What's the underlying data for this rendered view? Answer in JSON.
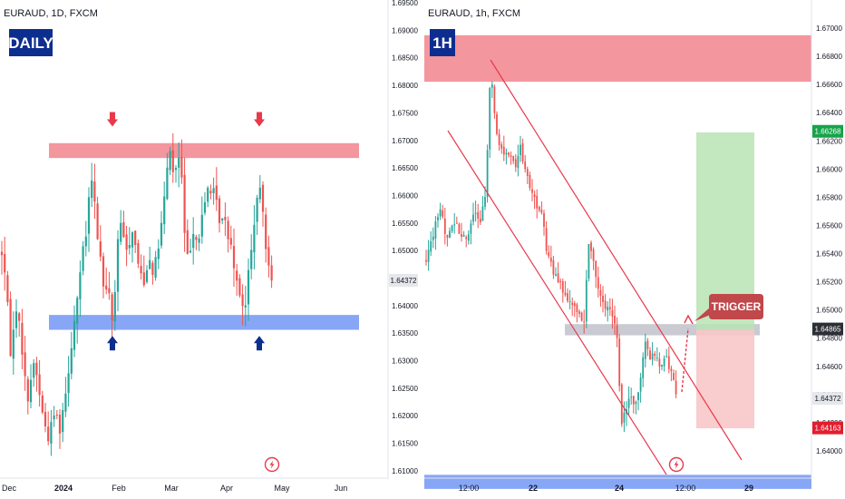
{
  "colors": {
    "bull": "#26a69a",
    "bear": "#ef5350",
    "resistance_zone": "#f28b93",
    "support_zone": "#7b9cf5",
    "grey_zone": "#b8b8c4",
    "badge": "#0e2e8f",
    "arrow_red": "#e8394b",
    "arrow_blue": "#0c2e8c",
    "channel": "#e8394b",
    "target_zone": "#b9e3b4",
    "stop_zone": "#f8c6c8",
    "trigger_bg": "#c0474a",
    "price_current": "#e6e7ea",
    "price_green": "#16a34a",
    "price_red": "#e21d2d",
    "price_dark": "#2d2f36"
  },
  "icons": [
    "lightning-icon"
  ],
  "chart_data": [
    {
      "type": "candlestick",
      "symbol": "EURAUD, 1D, FXCM",
      "badge": "DAILY",
      "x_labels": [
        "Dec",
        "2024",
        "Feb",
        "Mar",
        "Apr",
        "May",
        "Jun"
      ],
      "y_ticks": [
        "1.69500",
        "1.69000",
        "1.68500",
        "1.68000",
        "1.67500",
        "1.67000",
        "1.66500",
        "1.66000",
        "1.65500",
        "1.65000",
        "1.64500",
        "1.64000",
        "1.63500",
        "1.63000",
        "1.62500",
        "1.62000",
        "1.61500",
        "1.61000"
      ],
      "ylim": [
        1.6085,
        1.6955
      ],
      "current_price": "1.64372",
      "zones": [
        {
          "name": "resistance",
          "from": 1.6668,
          "to": 1.6695
        },
        {
          "name": "support",
          "from": 1.6356,
          "to": 1.6383
        }
      ],
      "arrows": [
        {
          "direction": "down",
          "date": "Jan 29",
          "price": 1.6735
        },
        {
          "direction": "down",
          "date": "Apr 22",
          "price": 1.6735
        },
        {
          "direction": "up",
          "date": "Jan 29",
          "price": 1.6335
        },
        {
          "direction": "up",
          "date": "Apr 22",
          "price": 1.6335
        }
      ],
      "path": [
        [
          0,
          1.652
        ],
        [
          6,
          1.645
        ],
        [
          12,
          1.631
        ],
        [
          18,
          1.64
        ],
        [
          24,
          1.633
        ],
        [
          30,
          1.622
        ],
        [
          34,
          1.627
        ],
        [
          38,
          1.63
        ],
        [
          42,
          1.626
        ],
        [
          48,
          1.619
        ],
        [
          54,
          1.616
        ],
        [
          60,
          1.621
        ],
        [
          66,
          1.618
        ],
        [
          72,
          1.624
        ],
        [
          78,
          1.632
        ],
        [
          84,
          1.64
        ],
        [
          90,
          1.648
        ],
        [
          96,
          1.654
        ],
        [
          100,
          1.664
        ],
        [
          104,
          1.659
        ],
        [
          108,
          1.652
        ],
        [
          112,
          1.647
        ],
        [
          116,
          1.641
        ],
        [
          120,
          1.644
        ],
        [
          124,
          1.636
        ],
        [
          128,
          1.646
        ],
        [
          132,
          1.656
        ],
        [
          136,
          1.652
        ],
        [
          140,
          1.65
        ],
        [
          146,
          1.654
        ],
        [
          152,
          1.648
        ],
        [
          158,
          1.644
        ],
        [
          164,
          1.649
        ],
        [
          170,
          1.646
        ],
        [
          176,
          1.652
        ],
        [
          180,
          1.657
        ],
        [
          184,
          1.664
        ],
        [
          188,
          1.669
        ],
        [
          192,
          1.662
        ],
        [
          196,
          1.668
        ],
        [
          200,
          1.664
        ],
        [
          204,
          1.652
        ],
        [
          208,
          1.647
        ],
        [
          212,
          1.655
        ],
        [
          218,
          1.651
        ],
        [
          224,
          1.657
        ],
        [
          230,
          1.662
        ],
        [
          236,
          1.66
        ],
        [
          242,
          1.656
        ],
        [
          248,
          1.655
        ],
        [
          254,
          1.652
        ],
        [
          258,
          1.648
        ],
        [
          262,
          1.644
        ],
        [
          266,
          1.642
        ],
        [
          270,
          1.638
        ],
        [
          274,
          1.646
        ],
        [
          278,
          1.651
        ],
        [
          282,
          1.658
        ],
        [
          286,
          1.661
        ],
        [
          290,
          1.657
        ],
        [
          294,
          1.65
        ],
        [
          298,
          1.647
        ],
        [
          302,
          1.643
        ]
      ]
    },
    {
      "type": "candlestick",
      "symbol": "EURAUD, 1h, FXCM",
      "badge": "1H",
      "x_labels": [
        "12:00",
        "22",
        "24",
        "12:00",
        "29"
      ],
      "y_ticks": [
        "1.67000",
        "1.66800",
        "1.66600",
        "1.66400",
        "1.66200",
        "1.66000",
        "1.65800",
        "1.65600",
        "1.65400",
        "1.65200",
        "1.65000",
        "1.64800",
        "1.64600",
        "1.64400",
        "1.64200",
        "1.64000"
      ],
      "ylim": [
        1.638,
        1.672
      ],
      "price_labels": [
        {
          "value": "1.66268",
          "role": "target"
        },
        {
          "value": "1.64865",
          "role": "trigger"
        },
        {
          "value": "1.64372",
          "role": "current"
        },
        {
          "value": "1.64163",
          "role": "stop"
        }
      ],
      "annotation": "TRIGGER",
      "zones": [
        {
          "name": "resistance",
          "from": 1.6662,
          "to": 1.6695
        },
        {
          "name": "grey",
          "from": 1.6482,
          "to": 1.649
        },
        {
          "name": "support",
          "from": 1.6373,
          "to": 1.6383
        },
        {
          "name": "target",
          "from": 1.6486,
          "to": 1.6626
        },
        {
          "name": "stop",
          "from": 1.6416,
          "to": 1.6486
        }
      ],
      "path": [
        [
          470,
          1.6535
        ],
        [
          478,
          1.6555
        ],
        [
          486,
          1.6572
        ],
        [
          492,
          1.6552
        ],
        [
          500,
          1.6563
        ],
        [
          508,
          1.6555
        ],
        [
          516,
          1.6549
        ],
        [
          524,
          1.6572
        ],
        [
          530,
          1.6561
        ],
        [
          536,
          1.6585
        ],
        [
          540,
          1.6655
        ],
        [
          543,
          1.666
        ],
        [
          546,
          1.6632
        ],
        [
          550,
          1.6618
        ],
        [
          556,
          1.6612
        ],
        [
          562,
          1.6608
        ],
        [
          568,
          1.6602
        ],
        [
          574,
          1.6615
        ],
        [
          580,
          1.6598
        ],
        [
          586,
          1.6586
        ],
        [
          592,
          1.6573
        ],
        [
          598,
          1.6567
        ],
        [
          602,
          1.6545
        ],
        [
          608,
          1.6532
        ],
        [
          614,
          1.6522
        ],
        [
          620,
          1.6516
        ],
        [
          626,
          1.6508
        ],
        [
          632,
          1.6502
        ],
        [
          638,
          1.6495
        ],
        [
          644,
          1.6492
        ],
        [
          650,
          1.6553
        ],
        [
          656,
          1.6528
        ],
        [
          662,
          1.6508
        ],
        [
          668,
          1.6503
        ],
        [
          674,
          1.6497
        ],
        [
          680,
          1.6489
        ],
        [
          684,
          1.6432
        ],
        [
          686,
          1.642
        ],
        [
          690,
          1.6428
        ],
        [
          696,
          1.644
        ],
        [
          700,
          1.6432
        ],
        [
          704,
          1.6442
        ],
        [
          708,
          1.646
        ],
        [
          712,
          1.6477
        ],
        [
          716,
          1.6465
        ],
        [
          722,
          1.647
        ],
        [
          728,
          1.6462
        ],
        [
          734,
          1.6467
        ],
        [
          740,
          1.6457
        ],
        [
          744,
          1.6445
        ],
        [
          748,
          1.6438
        ]
      ]
    }
  ]
}
